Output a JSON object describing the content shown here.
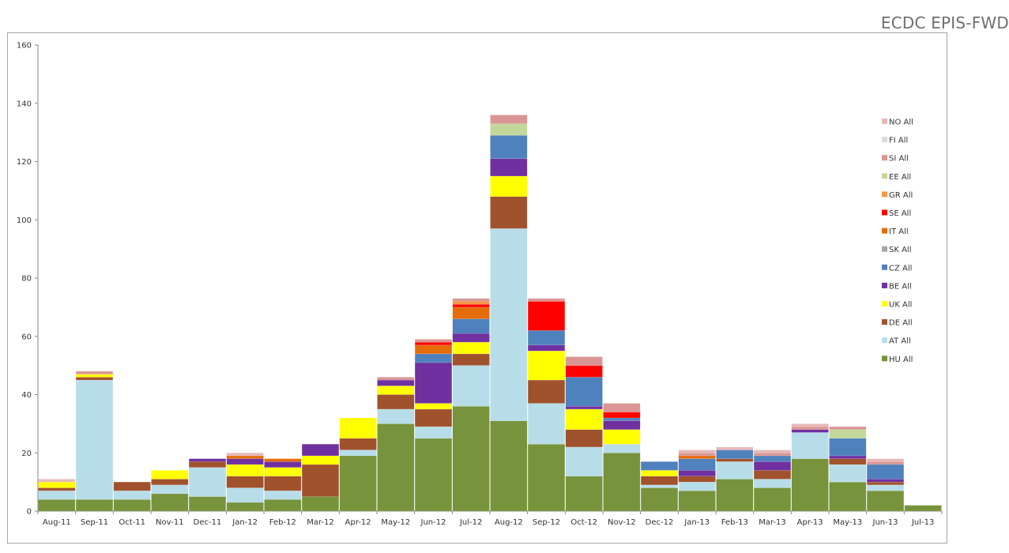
{
  "header": {
    "source": "ECDC EPIS-FWD"
  },
  "chart_data": {
    "type": "bar",
    "stacked": true,
    "ylim": [
      0,
      160
    ],
    "yticks": [
      0,
      20,
      40,
      60,
      80,
      100,
      120,
      140,
      160
    ],
    "grid": false,
    "legend_position": "right",
    "categories": [
      "Aug-11",
      "Sep-11",
      "Oct-11",
      "Nov-11",
      "Dec-11",
      "Jan-12",
      "Feb-12",
      "Mar-12",
      "Apr-12",
      "May-12",
      "Jun-12",
      "Jul-12",
      "Aug-12",
      "Sep-12",
      "Oct-12",
      "Nov-12",
      "Dec-12",
      "Jan-13",
      "Feb-13",
      "Mar-13",
      "Apr-13",
      "May-13",
      "Jun-13",
      "Jul-13"
    ],
    "series": [
      {
        "name": "HU All",
        "color": "#77933c",
        "values": [
          4,
          4,
          4,
          6,
          5,
          3,
          4,
          5,
          19,
          30,
          25,
          36,
          31,
          23,
          12,
          20,
          8,
          7,
          11,
          8,
          18,
          10,
          7,
          2
        ]
      },
      {
        "name": "AT All",
        "color": "#b7dde8",
        "values": [
          3,
          41,
          3,
          3,
          10,
          5,
          3,
          0,
          2,
          5,
          4,
          14,
          66,
          14,
          10,
          3,
          1,
          3,
          6,
          3,
          9,
          6,
          2,
          0
        ]
      },
      {
        "name": "DE All",
        "color": "#a0522d",
        "values": [
          1,
          1,
          3,
          2,
          2,
          4,
          5,
          11,
          4,
          5,
          6,
          4,
          11,
          8,
          6,
          0,
          3,
          2,
          1,
          3,
          0,
          2,
          1,
          0
        ]
      },
      {
        "name": "UK All",
        "color": "#ffff00",
        "values": [
          2,
          1,
          0,
          3,
          0,
          4,
          3,
          3,
          7,
          3,
          2,
          4,
          7,
          10,
          7,
          5,
          2,
          0,
          0,
          0,
          0,
          0,
          0,
          0
        ]
      },
      {
        "name": "BE All",
        "color": "#7030a0",
        "values": [
          0,
          0,
          0,
          0,
          1,
          2,
          2,
          4,
          0,
          2,
          14,
          3,
          6,
          2,
          1,
          3,
          0,
          2,
          0,
          3,
          1,
          1,
          1,
          0
        ]
      },
      {
        "name": "CZ All",
        "color": "#4f81bd",
        "values": [
          0,
          0,
          0,
          0,
          0,
          0,
          0,
          0,
          0,
          0,
          3,
          5,
          8,
          5,
          10,
          1,
          3,
          4,
          3,
          2,
          0,
          6,
          5,
          0
        ]
      },
      {
        "name": "SK All",
        "color": "#a6a6a6",
        "values": [
          0,
          0,
          0,
          0,
          0,
          0,
          0,
          0,
          0,
          0,
          0,
          0,
          0,
          0,
          0,
          0,
          0,
          0,
          0,
          0,
          0,
          0,
          0,
          0
        ]
      },
      {
        "name": "IT All",
        "color": "#e46c0a",
        "values": [
          0,
          0,
          0,
          0,
          0,
          1,
          1,
          0,
          0,
          0,
          3,
          4,
          0,
          0,
          0,
          0,
          0,
          1,
          0,
          0,
          0,
          0,
          0,
          0
        ]
      },
      {
        "name": "SE All",
        "color": "#ff0000",
        "values": [
          0,
          0,
          0,
          0,
          0,
          0,
          0,
          0,
          0,
          0,
          1,
          1,
          0,
          10,
          4,
          2,
          0,
          0,
          0,
          0,
          0,
          0,
          0,
          0
        ]
      },
      {
        "name": "GR All",
        "color": "#f79646",
        "values": [
          0,
          0,
          0,
          0,
          0,
          0,
          0,
          0,
          0,
          0,
          0,
          1,
          0,
          0,
          0,
          0,
          0,
          0,
          0,
          0,
          0,
          0,
          0,
          0
        ]
      },
      {
        "name": "EE All",
        "color": "#c4d79b",
        "values": [
          0,
          0,
          0,
          0,
          0,
          0,
          0,
          0,
          0,
          0,
          0,
          0,
          4,
          0,
          0,
          0,
          0,
          0,
          0,
          0,
          0,
          3,
          0,
          0
        ]
      },
      {
        "name": "SI All",
        "color": "#d99694",
        "values": [
          0,
          1,
          0,
          0,
          0,
          0,
          0,
          0,
          0,
          1,
          1,
          1,
          3,
          1,
          3,
          3,
          0,
          1,
          0,
          1,
          1,
          1,
          1,
          0
        ]
      },
      {
        "name": "FI All",
        "color": "#d9d9d9",
        "values": [
          0,
          0,
          0,
          0,
          0,
          0,
          0,
          0,
          0,
          0,
          0,
          0,
          0,
          0,
          0,
          0,
          0,
          0,
          0,
          0,
          0,
          0,
          0,
          0
        ]
      },
      {
        "name": "NO All",
        "color": "#e6b9b8",
        "values": [
          1,
          0,
          0,
          0,
          0,
          1,
          0,
          0,
          0,
          0,
          0,
          0,
          0,
          0,
          0,
          0,
          0,
          1,
          1,
          1,
          1,
          0,
          1,
          0
        ]
      }
    ],
    "legend_order": [
      "NO All",
      "FI All",
      "SI All",
      "EE All",
      "GR All",
      "SE All",
      "IT All",
      "SK All",
      "CZ All",
      "BE All",
      "UK All",
      "DE All",
      "AT All",
      "HU All"
    ]
  }
}
